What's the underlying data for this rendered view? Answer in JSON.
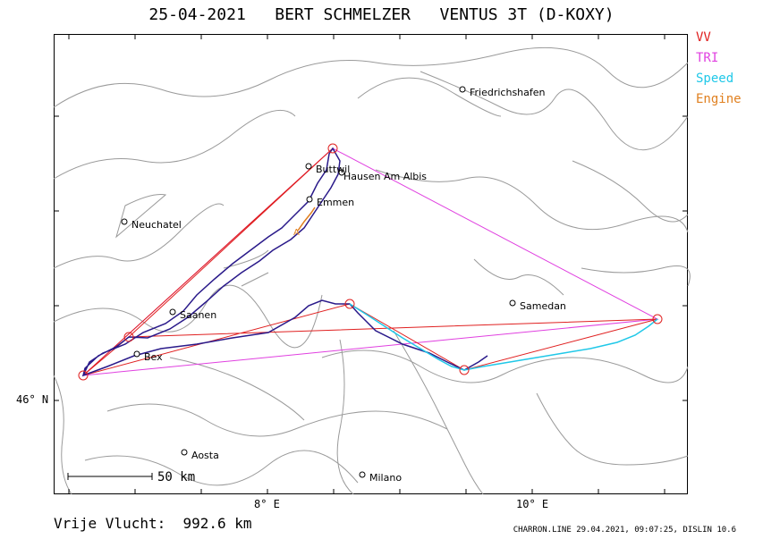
{
  "title": "25-04-2021   BERT SCHMELZER   VENTUS 3T (D-KOXY)",
  "legend": {
    "vv": {
      "label": "VV",
      "color": "#e02020"
    },
    "tri": {
      "label": "TRI",
      "color": "#e040e0"
    },
    "speed": {
      "label": "Speed",
      "color": "#20c8e8"
    },
    "engine": {
      "label": "Engine",
      "color": "#e08020"
    }
  },
  "axes": {
    "lat_label": "46° N",
    "lon_labels": [
      "8° E",
      "10° E"
    ]
  },
  "places": [
    {
      "name": "Friedrichshafen"
    },
    {
      "name": "Buttwil"
    },
    {
      "name": "Hausen Am Albis"
    },
    {
      "name": "Emmen"
    },
    {
      "name": "Neuchatel"
    },
    {
      "name": "Saanen"
    },
    {
      "name": "Samedan"
    },
    {
      "name": "Bex"
    },
    {
      "name": "Aosta"
    },
    {
      "name": "Milano"
    }
  ],
  "scale": {
    "label": "50  km"
  },
  "footer": {
    "distance": "Vrije Vlucht:  992.6 km",
    "credit": "CHARRON.LINE 29.04.2021, 09:07:25, DISLIN 10.6"
  },
  "colors": {
    "track": "#2a1a8a",
    "terrain": "#9a9a9a"
  }
}
